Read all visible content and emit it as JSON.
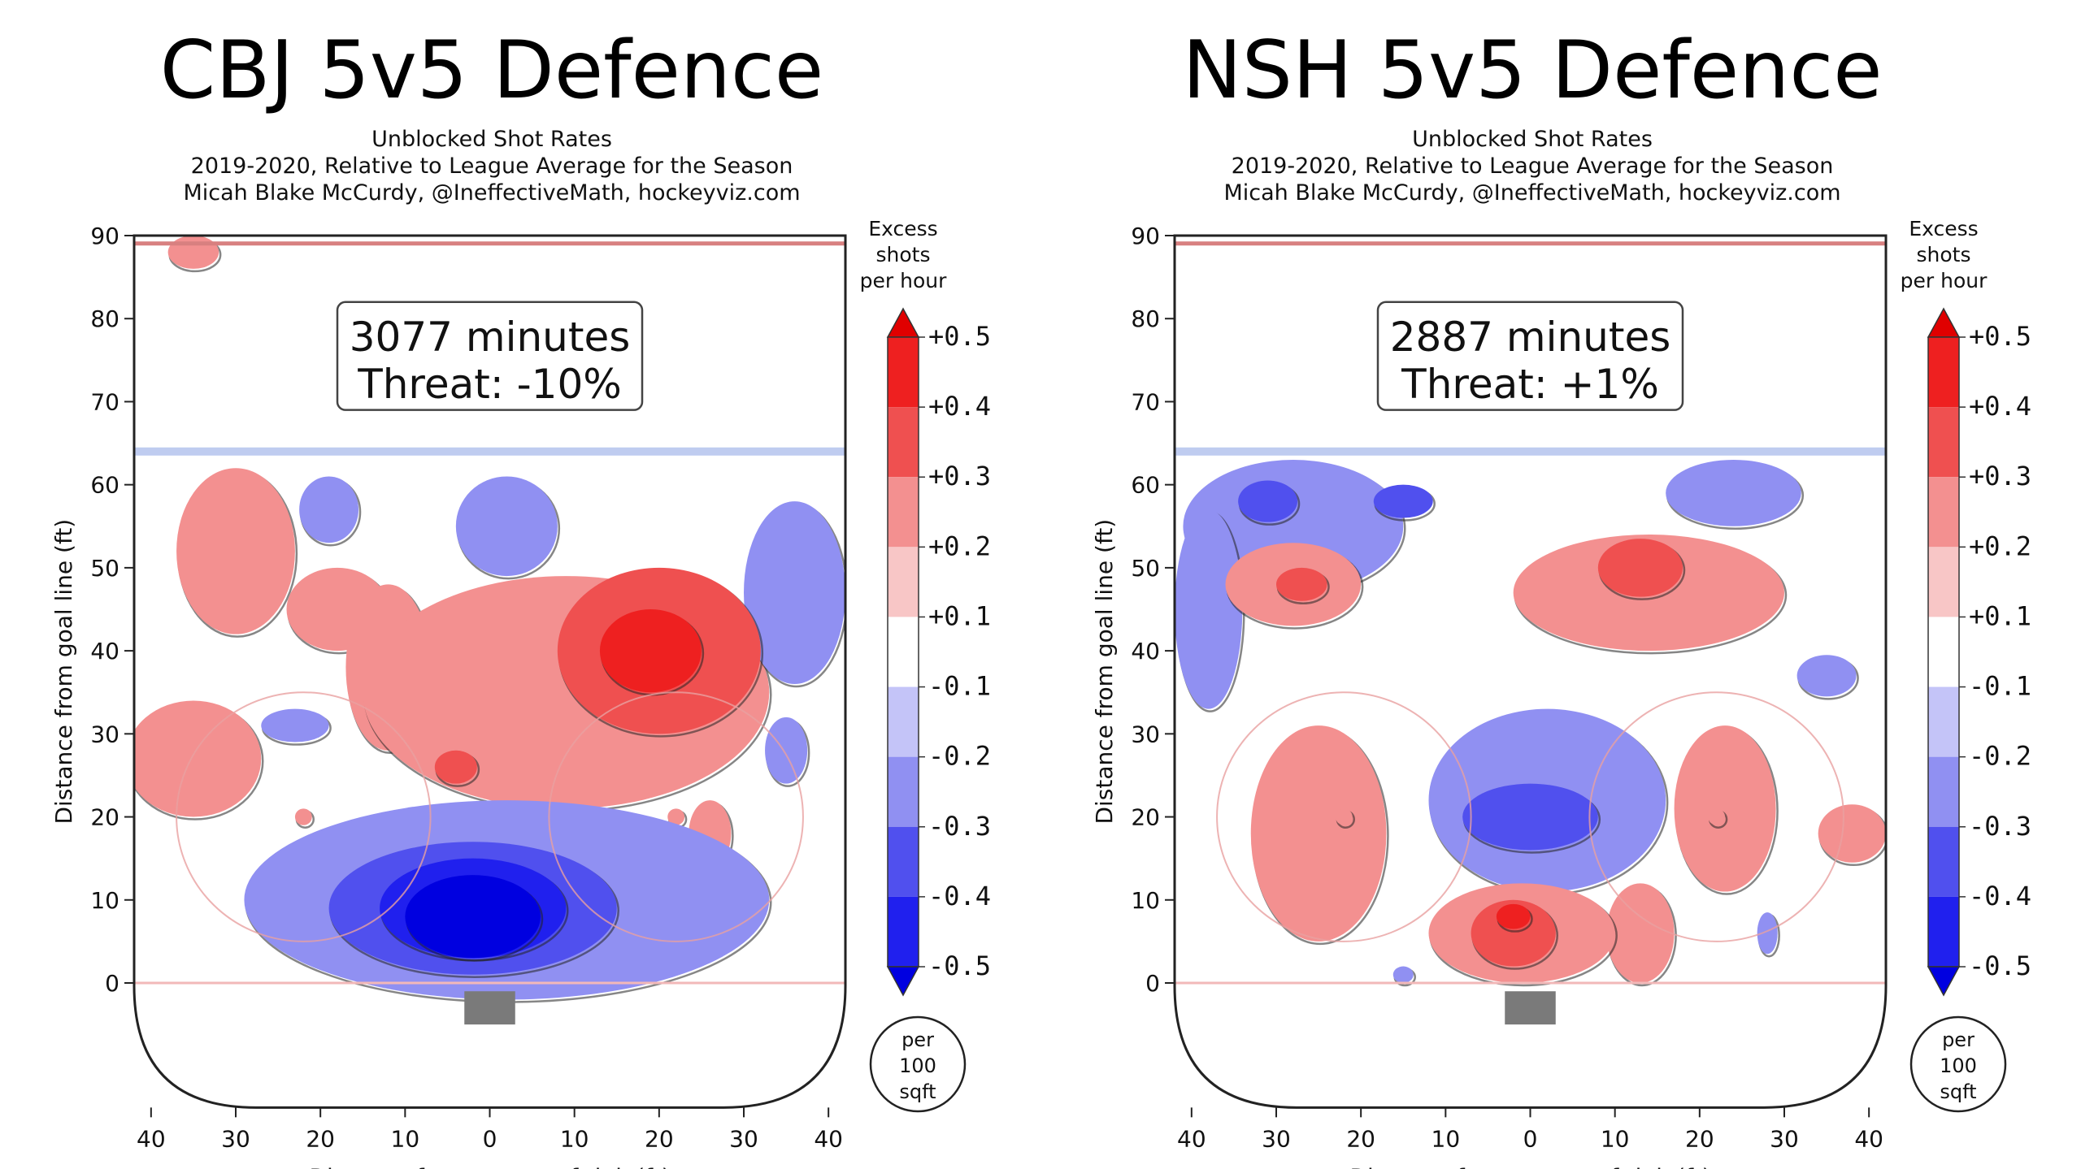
{
  "chart_data": [
    {
      "type": "heatmap",
      "title": "CBJ 5v5 Defence",
      "subtitle": [
        "Unblocked Shot Rates",
        "2019-2020, Relative to League Average for the Season",
        "Micah Blake McCurdy, @IneffectiveMath, hockeyviz.com"
      ],
      "annotation": [
        "3077 minutes",
        "Threat: -10%"
      ],
      "minutes": 3077,
      "threat_pct": -10,
      "xlabel": "Distance from centre of rink (ft)",
      "ylabel": "Distance from goal line (ft)",
      "xlim": [
        -42,
        42
      ],
      "ylim": [
        -15,
        90
      ],
      "x_ticks": [
        40,
        30,
        20,
        10,
        0,
        10,
        20,
        30,
        40
      ],
      "y_ticks": [
        0,
        10,
        20,
        30,
        40,
        50,
        60,
        70,
        80,
        90
      ],
      "colorbar": {
        "label": [
          "Excess",
          "shots",
          "per hour"
        ],
        "ticks": [
          "+0.5",
          "+0.4",
          "+0.3",
          "+0.2",
          "+0.1",
          "-0.1",
          "-0.2",
          "-0.3",
          "-0.4",
          "-0.5"
        ],
        "units": [
          "per",
          "100",
          "sqft"
        ]
      },
      "regions": [
        {
          "level": 0.15,
          "cx": -35,
          "cy": 88,
          "rx": 3,
          "ry": 2
        },
        {
          "level": 0.15,
          "cx": -30,
          "cy": 52,
          "rx": 7,
          "ry": 10
        },
        {
          "level": 0.15,
          "cx": -35,
          "cy": 27,
          "rx": 8,
          "ry": 7
        },
        {
          "level": 0.15,
          "cx": -18,
          "cy": 45,
          "rx": 6,
          "ry": 5
        },
        {
          "level": 0.15,
          "cx": -12,
          "cy": 38,
          "rx": 5,
          "ry": 10
        },
        {
          "level": 0.15,
          "cx": 9,
          "cy": 35,
          "rx": 24,
          "ry": 14
        },
        {
          "level": 0.25,
          "cx": 20,
          "cy": 40,
          "rx": 12,
          "ry": 10
        },
        {
          "level": 0.35,
          "cx": 19,
          "cy": 40,
          "rx": 6,
          "ry": 5
        },
        {
          "level": 0.25,
          "cx": -4,
          "cy": 26,
          "rx": 2.5,
          "ry": 2
        },
        {
          "level": 0.15,
          "cx": 26,
          "cy": 18,
          "rx": 2.5,
          "ry": 4
        },
        {
          "level": 0.15,
          "cx": -22,
          "cy": 20,
          "rx": 1,
          "ry": 1
        },
        {
          "level": 0.15,
          "cx": 22,
          "cy": 20,
          "rx": 1,
          "ry": 1
        },
        {
          "level": -0.15,
          "cx": -19,
          "cy": 57,
          "rx": 3.5,
          "ry": 4
        },
        {
          "level": -0.15,
          "cx": 2,
          "cy": 55,
          "rx": 6,
          "ry": 6
        },
        {
          "level": -0.15,
          "cx": 36,
          "cy": 47,
          "rx": 6,
          "ry": 11
        },
        {
          "level": -0.15,
          "cx": -23,
          "cy": 31,
          "rx": 4,
          "ry": 2
        },
        {
          "level": -0.15,
          "cx": 35,
          "cy": 28,
          "rx": 2.5,
          "ry": 4
        },
        {
          "level": -0.15,
          "cx": 2,
          "cy": 10,
          "rx": 31,
          "ry": 12
        },
        {
          "level": -0.25,
          "cx": -2,
          "cy": 9,
          "rx": 17,
          "ry": 8
        },
        {
          "level": -0.35,
          "cx": -2,
          "cy": 9,
          "rx": 11,
          "ry": 6
        },
        {
          "level": -0.45,
          "cx": -2,
          "cy": 8,
          "rx": 8,
          "ry": 5
        }
      ]
    },
    {
      "type": "heatmap",
      "title": "NSH 5v5 Defence",
      "subtitle": [
        "Unblocked Shot Rates",
        "2019-2020, Relative to League Average for the Season",
        "Micah Blake McCurdy, @IneffectiveMath, hockeyviz.com"
      ],
      "annotation": [
        "2887 minutes",
        "Threat: +1%"
      ],
      "minutes": 2887,
      "threat_pct": 1,
      "xlabel": "Distance from centre of rink (ft)",
      "ylabel": "Distance from goal line (ft)",
      "xlim": [
        -42,
        42
      ],
      "ylim": [
        -15,
        90
      ],
      "x_ticks": [
        40,
        30,
        20,
        10,
        0,
        10,
        20,
        30,
        40
      ],
      "y_ticks": [
        0,
        10,
        20,
        30,
        40,
        50,
        60,
        70,
        80,
        90
      ],
      "colorbar": {
        "label": [
          "Excess",
          "shots",
          "per hour"
        ],
        "ticks": [
          "+0.5",
          "+0.4",
          "+0.3",
          "+0.2",
          "+0.1",
          "-0.1",
          "-0.2",
          "-0.3",
          "-0.4",
          "-0.5"
        ],
        "units": [
          "per",
          "100",
          "sqft"
        ]
      },
      "regions": [
        {
          "level": -0.15,
          "cx": -28,
          "cy": 55,
          "rx": 13,
          "ry": 8
        },
        {
          "level": -0.15,
          "cx": -38,
          "cy": 45,
          "rx": 4,
          "ry": 12
        },
        {
          "level": -0.25,
          "cx": -31,
          "cy": 58,
          "rx": 3.5,
          "ry": 2.5
        },
        {
          "level": -0.25,
          "cx": -15,
          "cy": 58,
          "rx": 3.5,
          "ry": 2
        },
        {
          "level": -0.15,
          "cx": 24,
          "cy": 59,
          "rx": 8,
          "ry": 4
        },
        {
          "level": -0.15,
          "cx": 35,
          "cy": 37,
          "rx": 3.5,
          "ry": 2.5
        },
        {
          "level": -0.15,
          "cx": 2,
          "cy": 22,
          "rx": 14,
          "ry": 11
        },
        {
          "level": -0.25,
          "cx": 0,
          "cy": 20,
          "rx": 8,
          "ry": 4
        },
        {
          "level": -0.15,
          "cx": 28,
          "cy": 6,
          "rx": 1.2,
          "ry": 2.5
        },
        {
          "level": -0.15,
          "cx": -15,
          "cy": 1,
          "rx": 1.2,
          "ry": 1
        },
        {
          "level": 0.15,
          "cx": -28,
          "cy": 48,
          "rx": 8,
          "ry": 5
        },
        {
          "level": 0.25,
          "cx": -27,
          "cy": 48,
          "rx": 3,
          "ry": 2
        },
        {
          "level": 0.15,
          "cx": 14,
          "cy": 47,
          "rx": 16,
          "ry": 7
        },
        {
          "level": 0.25,
          "cx": 13,
          "cy": 50,
          "rx": 5,
          "ry": 3.5
        },
        {
          "level": 0.15,
          "cx": -25,
          "cy": 18,
          "rx": 8,
          "ry": 13
        },
        {
          "level": 0.15,
          "cx": 23,
          "cy": 21,
          "rx": 6,
          "ry": 10
        },
        {
          "level": 0.15,
          "cx": 38,
          "cy": 18,
          "rx": 4,
          "ry": 3.5
        },
        {
          "level": 0.15,
          "cx": 13,
          "cy": 6,
          "rx": 4,
          "ry": 6
        },
        {
          "level": 0.15,
          "cx": -1,
          "cy": 6,
          "rx": 11,
          "ry": 6
        },
        {
          "level": 0.25,
          "cx": -2,
          "cy": 6,
          "rx": 5,
          "ry": 4
        },
        {
          "level": 0.35,
          "cx": -2,
          "cy": 8,
          "rx": 2,
          "ry": 1.5
        },
        {
          "level": 0.15,
          "cx": -22,
          "cy": 20,
          "rx": 1,
          "ry": 1
        },
        {
          "level": 0.15,
          "cx": 22,
          "cy": 20,
          "rx": 1,
          "ry": 1
        }
      ]
    }
  ]
}
